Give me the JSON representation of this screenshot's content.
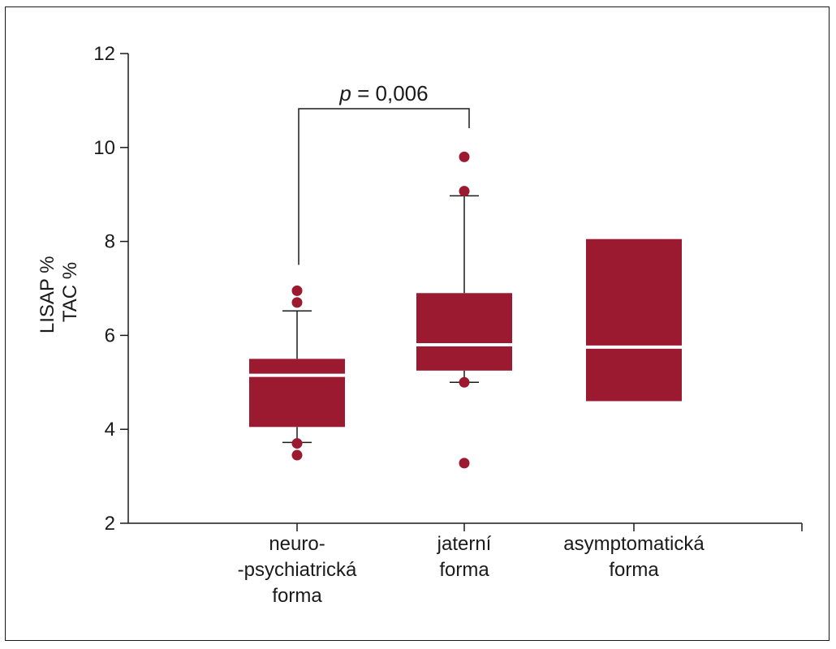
{
  "chart_data": {
    "type": "box",
    "title": "",
    "ylabel_lines": [
      "LISAP %",
      "TAC %"
    ],
    "xlabel": "",
    "ylim": [
      2,
      12
    ],
    "yticks": [
      2,
      4,
      6,
      8,
      10,
      12
    ],
    "tick_labels": [
      "2",
      "4",
      "6",
      "8",
      "10",
      "12"
    ],
    "categories": [
      {
        "lines": [
          "neuro-",
          "-psychiatrická",
          "forma"
        ]
      },
      {
        "lines": [
          "jaterní",
          "forma"
        ]
      },
      {
        "lines": [
          "asymptomatická",
          "forma"
        ]
      }
    ],
    "boxes": [
      {
        "q1": 4.05,
        "median": 5.15,
        "q3": 5.5,
        "whisker_low": 3.72,
        "whisker_high": 6.52,
        "outliers": [
          3.7,
          3.45,
          6.95,
          6.7
        ]
      },
      {
        "q1": 5.25,
        "median": 5.8,
        "q3": 6.9,
        "whisker_low": 5.0,
        "whisker_high": 8.97,
        "outliers": [
          5.0,
          3.28,
          9.07,
          9.8
        ]
      },
      {
        "q1": 4.6,
        "median": 5.75,
        "q3": 8.05,
        "whisker_low": null,
        "whisker_high": null,
        "outliers": []
      }
    ],
    "annotation": {
      "p_symbol": "p",
      "text": " = 0,006",
      "between": [
        0,
        1
      ]
    },
    "colors": {
      "box": "#9b1a30",
      "median": "#ffffff",
      "axis": "#1a1a1a"
    }
  }
}
